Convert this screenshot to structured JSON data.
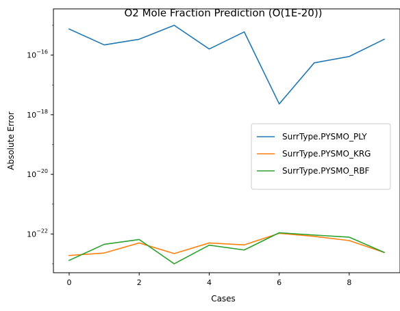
{
  "chart_data": {
    "type": "line",
    "title": "O2 Mole Fraction Prediction (O(1E-20))",
    "xlabel": "Cases",
    "ylabel": "Absolute Error",
    "yscale": "log",
    "xlim": [
      -0.45,
      9.45
    ],
    "ylim_log10": [
      -23.3,
      -14.45
    ],
    "x": [
      0,
      1,
      2,
      3,
      4,
      5,
      6,
      7,
      8,
      9
    ],
    "x_ticks": [
      0,
      2,
      4,
      6,
      8
    ],
    "x_tick_labels": [
      "0",
      "2",
      "4",
      "6",
      "8"
    ],
    "y_ticks_log10": [
      -22,
      -20,
      -18,
      -16
    ],
    "y_tick_labels": [
      {
        "base": "10",
        "exp": "−22"
      },
      {
        "base": "10",
        "exp": "−20"
      },
      {
        "base": "10",
        "exp": "−18"
      },
      {
        "base": "10",
        "exp": "−16"
      }
    ],
    "grid": false,
    "legend_position": "center-right",
    "series": [
      {
        "name": "SurrType.PYSMO_PLY",
        "color": "#1f77b4",
        "values": [
          7.5e-16,
          2.2e-16,
          3.4e-16,
          1e-15,
          1.6e-16,
          6e-16,
          2.3e-18,
          5.5e-17,
          9e-17,
          3.4e-16
        ]
      },
      {
        "name": "SurrType.PYSMO_KRG",
        "color": "#ff7f0e",
        "values": [
          1.9e-23,
          2.3e-23,
          5e-23,
          2.2e-23,
          5e-23,
          4.3e-23,
          1.05e-22,
          8.3e-23,
          6e-23,
          2.4e-23
        ]
      },
      {
        "name": "SurrType.PYSMO_RBF",
        "color": "#2ca02c",
        "values": [
          1.3e-23,
          4.5e-23,
          6.5e-23,
          1e-23,
          4.2e-23,
          2.9e-23,
          1.1e-22,
          9.2e-23,
          7.8e-23,
          2.4e-23
        ]
      }
    ]
  }
}
